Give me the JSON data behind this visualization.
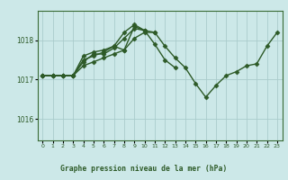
{
  "bg_color": "#cce8e8",
  "plot_bg_color": "#cce8e8",
  "grid_color": "#aacccc",
  "line_color": "#2d5a27",
  "marker": "D",
  "markersize": 2.5,
  "linewidth": 1.0,
  "title": "Graphe pression niveau de la mer (hPa)",
  "title_bg": "#3a6b35",
  "title_fg": "#cce8e8",
  "xlim": [
    -0.5,
    23.5
  ],
  "ylim": [
    1015.45,
    1018.75
  ],
  "yticks": [
    1016,
    1017,
    1018
  ],
  "xticks": [
    0,
    1,
    2,
    3,
    4,
    5,
    6,
    7,
    8,
    9,
    10,
    11,
    12,
    13,
    14,
    15,
    16,
    17,
    18,
    19,
    20,
    21,
    22,
    23
  ],
  "lines": [
    {
      "x": [
        0,
        1,
        2,
        3,
        4,
        5,
        6,
        7,
        8,
        9,
        10,
        11,
        12,
        13,
        14,
        15,
        16,
        17,
        18,
        19,
        20,
        21,
        22,
        23
      ],
      "y": [
        1017.1,
        1017.1,
        1017.1,
        1017.1,
        1017.35,
        1017.45,
        1017.55,
        1017.65,
        1017.75,
        1018.05,
        1018.2,
        1018.2,
        1017.85,
        1017.55,
        1017.3,
        1016.9,
        1016.55,
        1016.85,
        1017.1,
        1017.2,
        1017.35,
        1017.4,
        1017.85,
        1018.2
      ]
    },
    {
      "x": [
        0,
        1,
        2,
        3,
        4,
        5,
        6,
        7,
        8,
        9,
        10,
        11,
        12,
        13
      ],
      "y": [
        1017.1,
        1017.1,
        1017.1,
        1017.1,
        1017.45,
        1017.65,
        1017.65,
        1017.8,
        1018.05,
        1018.3,
        1018.25,
        1017.9,
        1017.5,
        1017.3
      ]
    },
    {
      "x": [
        0,
        1,
        2,
        3,
        4,
        5,
        6,
        7,
        8,
        9,
        10,
        11
      ],
      "y": [
        1017.1,
        1017.1,
        1017.1,
        1017.1,
        1017.5,
        1017.6,
        1017.7,
        1017.85,
        1017.75,
        1018.35,
        1018.25,
        1018.2
      ]
    },
    {
      "x": [
        0,
        1,
        2,
        3,
        4,
        5,
        6,
        7,
        8,
        9,
        10
      ],
      "y": [
        1017.1,
        1017.1,
        1017.1,
        1017.1,
        1017.6,
        1017.7,
        1017.75,
        1017.85,
        1018.2,
        1018.4,
        1018.25
      ]
    }
  ]
}
